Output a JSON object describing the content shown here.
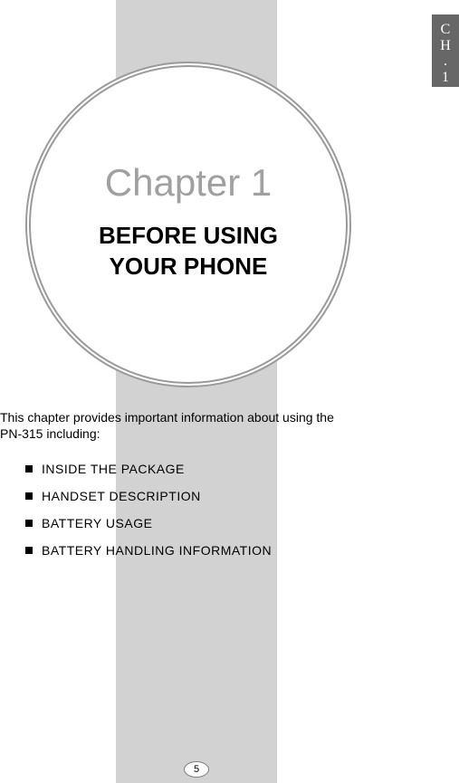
{
  "side_tab": {
    "line1": "C",
    "line2": "H",
    "line3": ".",
    "line4": "1"
  },
  "chapter": {
    "heading": "Chapter 1",
    "title_line1": "BEFORE USING",
    "title_line2": "YOUR PHONE"
  },
  "intro": {
    "line1": "This chapter provides important information about using the",
    "line2": "PN-315 including:"
  },
  "bullets": {
    "item1": "INSIDE THE PACKAGE",
    "item2": "HANDSET DESCRIPTION",
    "item3": "BATTERY USAGE",
    "item4": "BATTERY HANDLING INFORMATION"
  },
  "page_number": "5",
  "colors": {
    "band": "#d2d2d2",
    "tab_bg": "#676767",
    "chapter_heading": "#a0a0a0",
    "circle_border": "#9a9a9a"
  }
}
